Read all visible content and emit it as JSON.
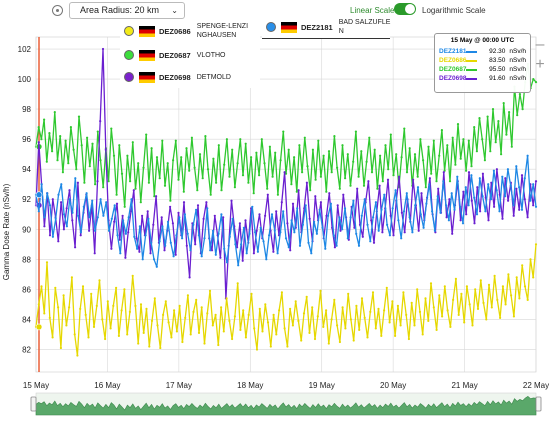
{
  "toolbar": {
    "radius_label": "Area Radius: 20 km",
    "scale_linear": "Linear Scale",
    "scale_log": "Logarithmic Scale"
  },
  "legend": [
    {
      "code": "DEZ0686",
      "name1": "SPENGE-LENZI",
      "name2": "NGHAUSEN",
      "color": "#f2ea18"
    },
    {
      "code": "DEZ2181",
      "name1": "BAD SALZUFLE",
      "name2": "N",
      "color": "#2a8fe8"
    },
    {
      "code": "DEZ0687",
      "name1": "VLOTHO",
      "name2": "",
      "color": "#3ddc3d"
    },
    {
      "code": "DEZ0698",
      "name1": "DETMOLD",
      "name2": "",
      "color": "#7b22cc"
    }
  ],
  "tooltip": {
    "title": "15 May @ 00:00 UTC",
    "unit": "nSv/h",
    "rows": [
      {
        "code": "DEZ2181",
        "value": "92.30",
        "color": "#1e88e5"
      },
      {
        "code": "DEZ0686",
        "value": "83.50",
        "color": "#e6d800"
      },
      {
        "code": "DEZ0687",
        "value": "95.50",
        "color": "#2fc82f"
      },
      {
        "code": "DEZ0698",
        "value": "91.60",
        "color": "#6a1fd0"
      }
    ]
  },
  "zoom": {
    "plus": "+",
    "minus": "–"
  },
  "chart_data": {
    "type": "line",
    "ylabel": "Gamma Dose Rate (nSv/h)",
    "xlabel": "",
    "ylim": [
      80.5,
      102.8
    ],
    "yticks": [
      82,
      84,
      86,
      88,
      90,
      92,
      94,
      96,
      98,
      100,
      102
    ],
    "xlim": [
      0,
      7
    ],
    "xticks": [
      {
        "v": 0,
        "label": "15 May"
      },
      {
        "v": 1,
        "label": "16 May"
      },
      {
        "v": 2,
        "label": "17 May"
      },
      {
        "v": 3,
        "label": "18 May"
      },
      {
        "v": 4,
        "label": "19 May"
      },
      {
        "v": 5,
        "label": "20 May"
      },
      {
        "v": 6,
        "label": "21 May"
      },
      {
        "v": 7,
        "label": "22 May"
      }
    ],
    "grid": true,
    "cursor_x": 0,
    "series": [
      {
        "name": "DEZ0687",
        "color": "#2fc82f",
        "values": [
          95.5,
          96.8,
          96,
          97.3,
          94.5,
          96.4,
          95.2,
          97.8,
          94.6,
          96.2,
          93.8,
          95.9,
          94.4,
          96.8,
          95.3,
          94.0,
          97.5,
          95.6,
          93.1,
          96.1,
          94.2,
          95.7,
          93.0,
          96.5,
          94.6,
          92.8,
          95.4,
          93.2,
          96.7,
          94.9,
          92.3,
          95.6,
          93.7,
          91.5,
          94.9,
          93.2,
          95.8,
          92.7,
          94.4,
          91.8,
          94.1,
          96.3,
          93.1,
          95.4,
          92.2,
          94.8,
          93.4,
          95.9,
          92.9,
          94.4,
          91.9,
          94.6,
          95.9,
          93.3,
          94.8,
          92.5,
          95.4,
          93.9,
          96.1,
          94.1,
          92.6,
          95.0,
          93.4,
          96.2,
          94.0,
          92.3,
          94.7,
          93.1,
          95.6,
          92.6,
          94.3,
          96.0,
          93.5,
          95.3,
          92.8,
          94.4,
          96.0,
          93.6,
          95.7,
          93.1,
          94.8,
          92.4,
          95.1,
          93.6,
          96.0,
          94.4,
          92.7,
          95.5,
          93.5,
          95.1,
          92.3,
          94.6,
          96.5,
          93.7,
          95.3,
          93.0,
          94.8,
          92.5,
          95.6,
          93.8,
          96.1,
          94.2,
          92.6,
          95.3,
          93.3,
          95.9,
          93.5,
          94.9,
          92.5,
          95.2,
          93.8,
          96.2,
          94.1,
          92.7,
          95.6,
          93.4,
          95.0,
          92.9,
          94.5,
          96.5,
          93.5,
          95.2,
          92.9,
          94.5,
          96.1,
          93.8,
          95.3,
          92.7,
          94.9,
          93.2,
          95.6,
          94.0,
          96.3,
          93.6,
          95.0,
          92.8,
          94.8,
          96.7,
          93.8,
          95.4,
          92.9,
          95.0,
          93.5,
          96.0,
          94.6,
          92.8,
          95.5,
          93.7,
          95.9,
          93.2,
          94.9,
          96.6,
          93.9,
          95.6,
          93.2,
          96.1,
          94.3,
          97.0,
          94.7,
          96.0,
          93.9,
          95.9,
          94.2,
          96.8,
          95.2,
          97.4,
          96.0,
          94.6,
          97.5,
          95.2,
          98.0,
          95.8,
          97.2,
          95.0,
          98.4,
          96.3,
          97.8,
          95.5,
          99.5,
          97.6,
          99.0,
          98.0,
          99.8,
          101.0,
          99.4,
          100.0,
          99.8
        ]
      },
      {
        "name": "DEZ0698",
        "color": "#6a1fd0",
        "values": [
          91.6,
          95.8,
          93.0,
          90.2,
          92.4,
          89.6,
          92.0,
          90.8,
          89.2,
          91.8,
          90.0,
          91.4,
          92.6,
          90.6,
          88.8,
          93.1,
          89.6,
          91.1,
          92.3,
          89.9,
          91.6,
          88.4,
          93.2,
          97.2,
          102.0,
          95.3,
          90.6,
          88.7,
          90.5,
          91.7,
          89.3,
          90.9,
          88.1,
          89.8,
          91.2,
          92.6,
          89.4,
          88.5,
          90.9,
          89.6,
          91.2,
          88.4,
          90.3,
          92.2,
          89.1,
          90.8,
          88.6,
          89.9,
          91.5,
          90.4,
          88.3,
          91.1,
          89.6,
          91.8,
          88.9,
          86.8,
          90.4,
          89.0,
          91.6,
          88.4,
          90.7,
          91.8,
          89.4,
          88.6,
          90.9,
          89.6,
          88.1,
          90.8,
          85.4,
          88.9,
          91.9,
          90.2,
          88.8,
          90.4,
          87.9,
          90.6,
          89.1,
          91.4,
          88.4,
          89.9,
          91.0,
          89.4,
          90.9,
          92.3,
          89.9,
          88.5,
          91.2,
          89.6,
          91.8,
          93.8,
          90.4,
          88.6,
          91.7,
          90.1,
          92.6,
          89.8,
          91.4,
          93.1,
          90.7,
          89.2,
          92.2,
          90.6,
          91.8,
          89.4,
          90.9,
          92.4,
          90.1,
          88.8,
          91.6,
          89.9,
          92.3,
          90.8,
          89.3,
          91.5,
          90.1,
          92.7,
          90.3,
          89.5,
          91.8,
          93.2,
          90.6,
          89.1,
          91.2,
          92.9,
          89.8,
          91.4,
          93.3,
          90.9,
          89.6,
          91.9,
          93.5,
          91.1,
          89.8,
          92.0,
          90.5,
          93.3,
          91.6,
          89.9,
          92.4,
          90.6,
          92.1,
          93.4,
          91.0,
          89.8,
          92.7,
          91.1,
          93.8,
          90.8,
          92.0,
          89.7,
          91.6,
          93.2,
          90.6,
          92.5,
          91.0,
          93.8,
          91.9,
          90.4,
          92.8,
          91.2,
          93.7,
          92.1,
          90.6,
          93.1,
          91.5,
          94.0,
          92.3,
          90.7,
          93.4,
          91.9,
          93.1,
          90.9,
          92.7,
          91.3,
          93.6,
          92.0,
          90.8,
          93.0,
          91.6,
          93.2
        ]
      },
      {
        "name": "DEZ2181",
        "color": "#1e88e5",
        "values": [
          92.3,
          91.2,
          93.0,
          90.8,
          92.4,
          91.6,
          89.5,
          90.7,
          92.3,
          93.0,
          91.0,
          90.2,
          92.0,
          91.1,
          93.4,
          90.9,
          89.8,
          91.5,
          92.4,
          90.8,
          91.9,
          89.9,
          90.8,
          92.0,
          90.9,
          91.8,
          89.9,
          90.7,
          91.6,
          89.6,
          88.4,
          90.6,
          89.7,
          90.8,
          92.0,
          89.5,
          88.7,
          90.2,
          88.0,
          89.6,
          90.7,
          89.1,
          88.0,
          87.5,
          89.2,
          90.2,
          88.9,
          90.5,
          89.1,
          88.2,
          89.6,
          90.8,
          89.4,
          91.0,
          89.7,
          88.6,
          90.3,
          91.3,
          89.6,
          88.2,
          89.4,
          91.4,
          88.6,
          89.9,
          88.3,
          89.7,
          91.0,
          88.7,
          87.8,
          89.5,
          90.7,
          89.0,
          87.6,
          89.0,
          90.1,
          88.4,
          89.7,
          91.5,
          89.8,
          88.5,
          90.1,
          89.2,
          88.0,
          89.6,
          91.0,
          89.9,
          88.4,
          89.8,
          91.2,
          89.4,
          88.8,
          90.6,
          89.8,
          91.4,
          88.9,
          90.3,
          91.6,
          89.1,
          88.4,
          90.5,
          89.7,
          91.3,
          90.1,
          88.7,
          90.9,
          91.7,
          89.6,
          88.9,
          90.8,
          90.0,
          91.4,
          89.4,
          90.8,
          91.9,
          89.7,
          88.9,
          90.9,
          92.0,
          90.3,
          89.2,
          90.8,
          91.8,
          89.9,
          91.3,
          92.3,
          90.3,
          89.6,
          91.4,
          92.6,
          90.6,
          89.4,
          91.2,
          92.4,
          90.8,
          89.8,
          91.6,
          92.8,
          91.0,
          90.1,
          91.7,
          93.0,
          91.2,
          89.9,
          92.2,
          91.1,
          93.2,
          91.6,
          90.6,
          92.4,
          91.3,
          93.5,
          91.5,
          90.4,
          92.8,
          91.6,
          93.6,
          92.1,
          91.0,
          93.4,
          92.2,
          91.2,
          93.0,
          92.0,
          93.9,
          92.6,
          91.2,
          93.5,
          92.2,
          94.0,
          92.9,
          91.6,
          94.2,
          92.8,
          91.3,
          93.4,
          94.9,
          91.9,
          93.0,
          91.5
        ]
      },
      {
        "name": "DEZ0686",
        "color": "#e6d800",
        "values": [
          83.5,
          85.0,
          86.2,
          84.4,
          87.8,
          84.1,
          82.8,
          86.1,
          84.8,
          82.1,
          85.6,
          83.6,
          84.8,
          86.8,
          83.0,
          81.6,
          84.7,
          86.2,
          84.3,
          82.8,
          85.7,
          83.5,
          84.9,
          86.6,
          84.0,
          82.7,
          85.2,
          83.4,
          84.9,
          86.1,
          82.9,
          84.6,
          86.0,
          83.0,
          84.5,
          86.9,
          84.9,
          82.4,
          85.0,
          83.1,
          84.7,
          82.2,
          83.9,
          85.4,
          83.6,
          82.1,
          84.3,
          85.2,
          83.8,
          82.8,
          84.6,
          83.2,
          84.9,
          82.5,
          84.1,
          85.6,
          83.0,
          84.5,
          85.3,
          83.1,
          84.8,
          82.4,
          84.4,
          85.9,
          83.6,
          84.3,
          82.3,
          84.8,
          83.2,
          85.4,
          83.9,
          82.7,
          84.2,
          86.4,
          83.3,
          84.6,
          82.8,
          84.3,
          85.7,
          83.4,
          82.0,
          84.7,
          83.2,
          85.0,
          83.8,
          82.2,
          84.3,
          83.0,
          84.6,
          85.8,
          83.4,
          82.2,
          84.7,
          83.6,
          85.2,
          83.9,
          82.6,
          84.4,
          85.5,
          83.1,
          84.8,
          82.7,
          84.2,
          85.9,
          83.5,
          84.6,
          82.4,
          84.0,
          85.3,
          83.6,
          82.5,
          84.8,
          83.4,
          85.7,
          84.0,
          82.6,
          84.9,
          83.3,
          85.4,
          84.1,
          82.8,
          84.5,
          85.8,
          83.4,
          84.7,
          82.9,
          84.6,
          86.1,
          83.8,
          85.2,
          82.9,
          84.9,
          83.6,
          85.8,
          84.3,
          82.7,
          85.1,
          83.6,
          86.0,
          84.5,
          83.0,
          85.4,
          83.9,
          86.4,
          84.8,
          83.3,
          85.6,
          84.2,
          86.2,
          84.6,
          83.5,
          85.3,
          86.7,
          84.3,
          85.7,
          83.8,
          86.2,
          85.0,
          83.6,
          86.0,
          84.7,
          86.6,
          85.1,
          84.0,
          86.3,
          84.8,
          86.9,
          85.3,
          84.1,
          86.2,
          85.0,
          87.0,
          85.6,
          84.2,
          86.8,
          85.4,
          87.6,
          86.2,
          85.3,
          88.0,
          86.8,
          89.0
        ]
      }
    ]
  }
}
